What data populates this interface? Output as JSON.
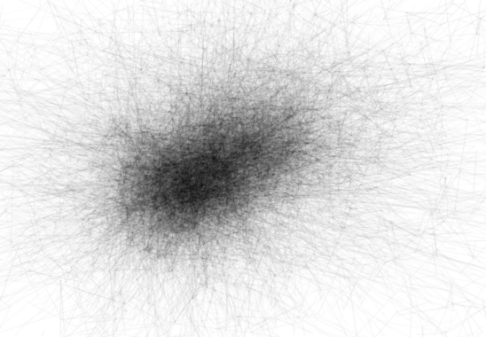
{
  "figure": {
    "kind": "network-hairball",
    "background_color": "#ffffff",
    "edge_color": "#000000",
    "has_title": false,
    "has_legend": false,
    "has_axes": false
  }
}
